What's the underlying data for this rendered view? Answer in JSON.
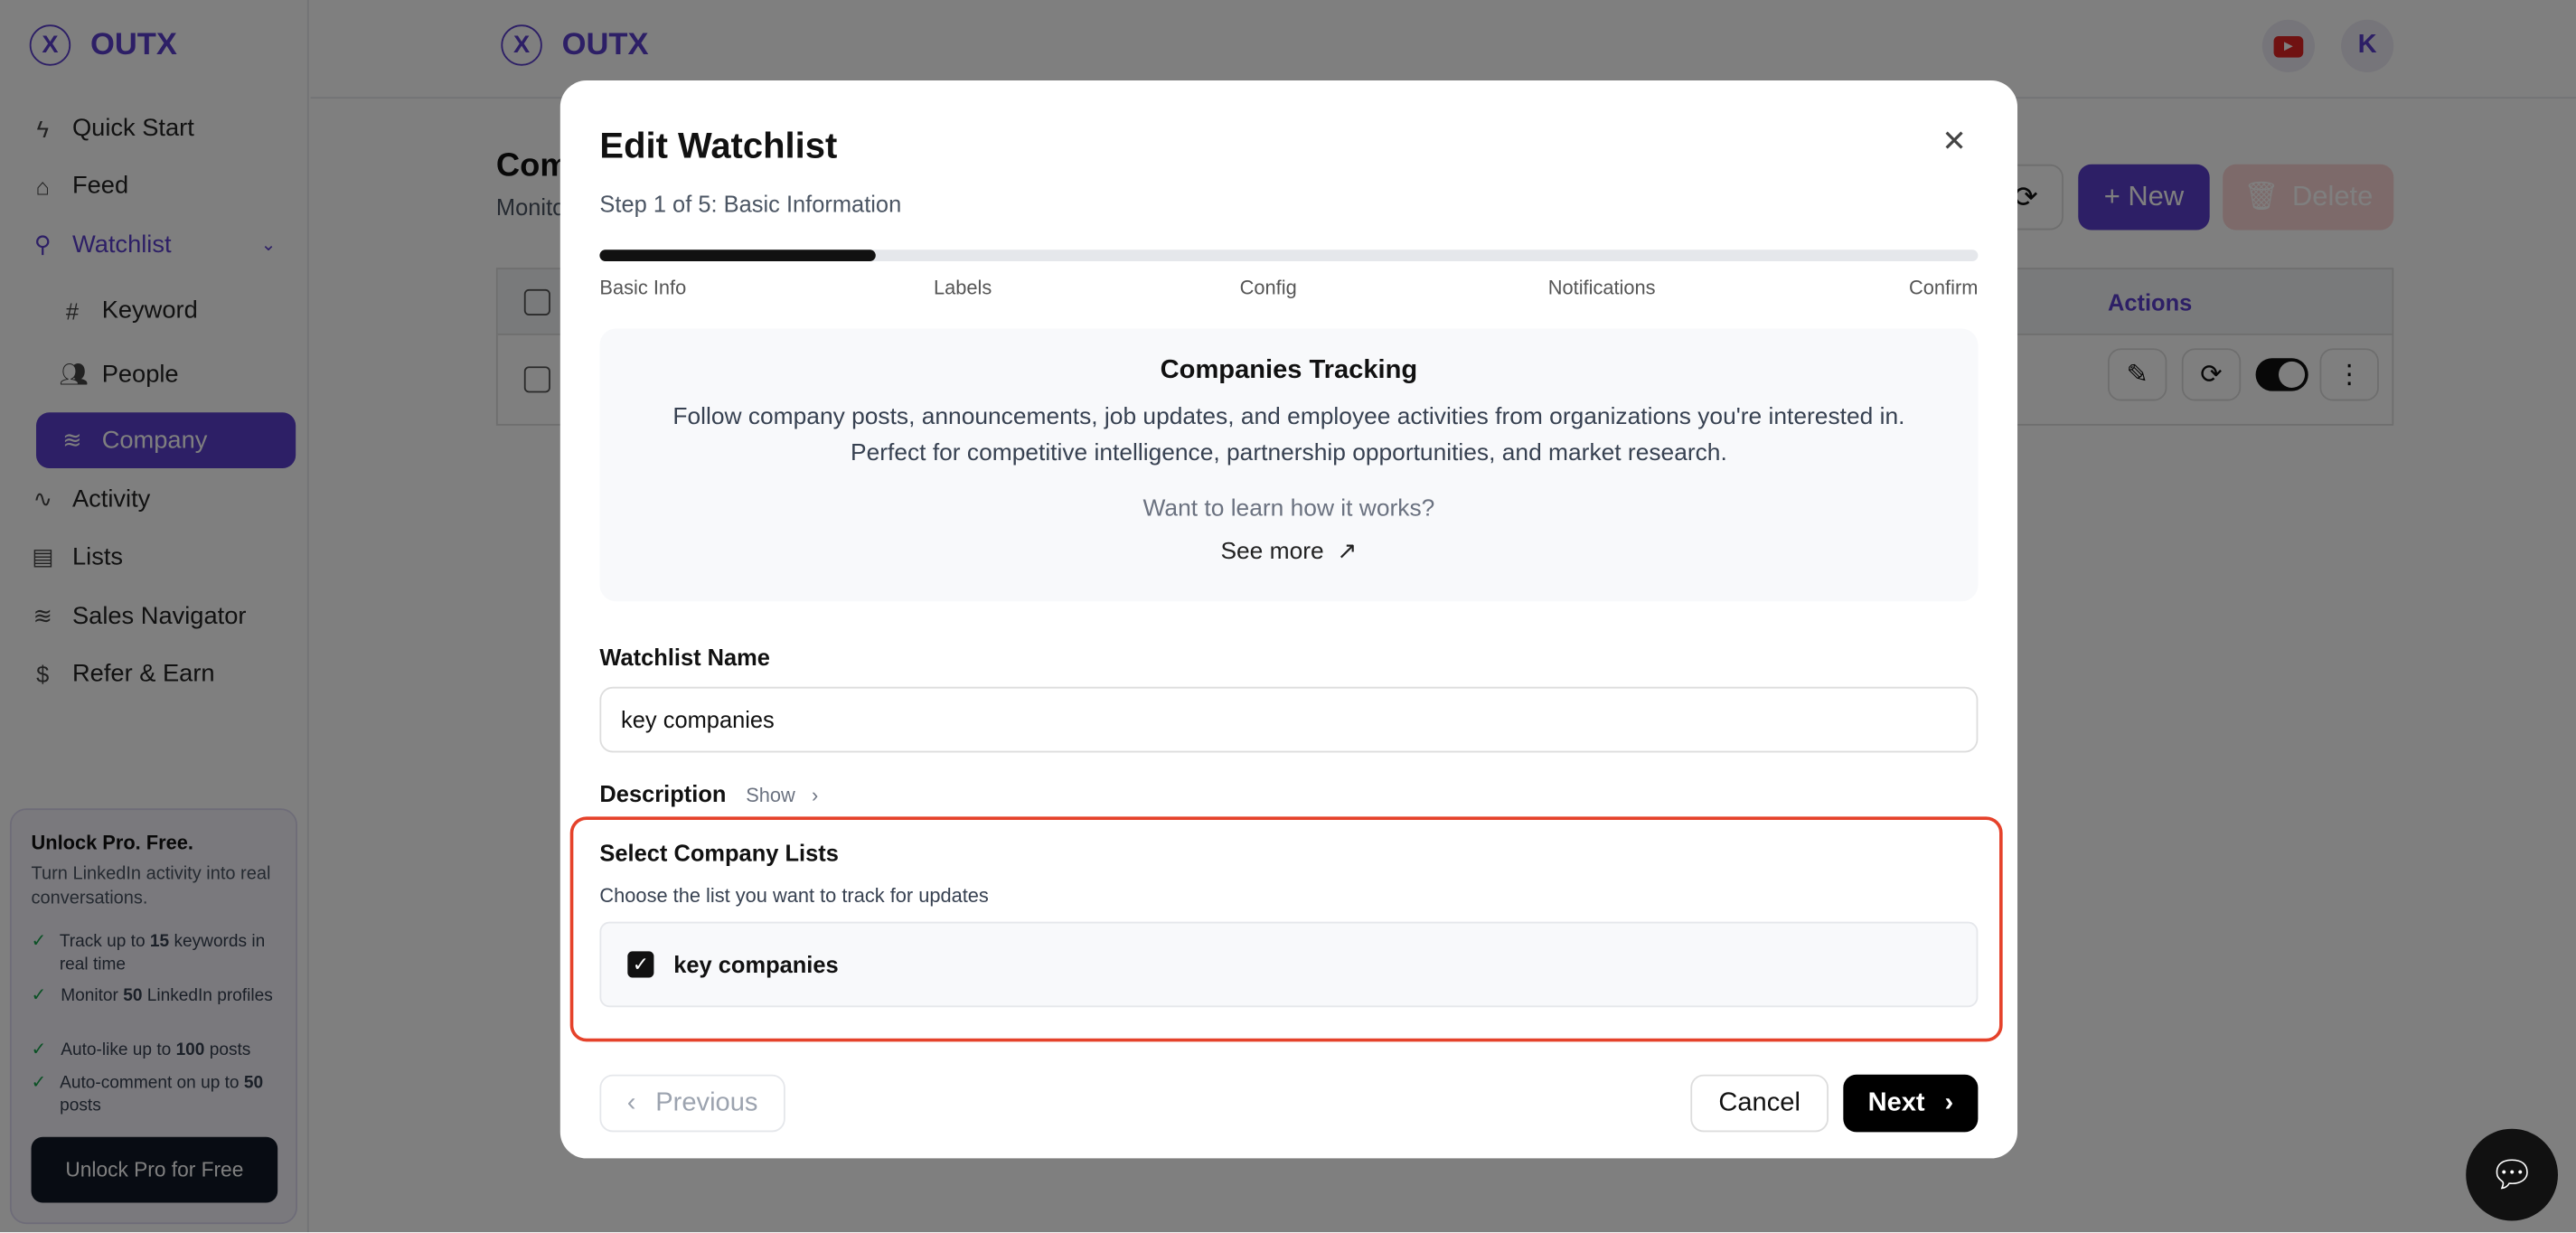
{
  "app": {
    "name": "OUTX",
    "logo_letter": "X",
    "brand_color": "#5b3fcc"
  },
  "sidebar": {
    "items": [
      {
        "label": "Quick Start",
        "icon": "lightning-icon"
      },
      {
        "label": "Feed",
        "icon": "home-icon"
      },
      {
        "label": "Watchlist",
        "icon": "search-icon"
      },
      {
        "label": "Keyword",
        "icon": "hash-icon"
      },
      {
        "label": "People",
        "icon": "users-icon"
      },
      {
        "label": "Company",
        "icon": "database-icon"
      },
      {
        "label": "Activity",
        "icon": "activity-icon"
      },
      {
        "label": "Lists",
        "icon": "document-icon"
      },
      {
        "label": "Sales Navigator",
        "icon": "database-icon"
      },
      {
        "label": "Refer & Earn",
        "icon": "dollar-icon"
      }
    ],
    "promo": {
      "title": "Unlock Pro. Free.",
      "subtitle": "Turn LinkedIn activity into real conversations.",
      "features": [
        {
          "pre": "Track up to ",
          "bold": "15",
          "post": " keywords in real time"
        },
        {
          "pre": "Monitor ",
          "bold": "50",
          "post": " LinkedIn profiles"
        },
        {
          "pre": "Auto-like up to ",
          "bold": "100",
          "post": " posts"
        },
        {
          "pre": "Auto-comment on up to ",
          "bold": "50",
          "post": " posts"
        }
      ],
      "button": "Unlock Pro for Free"
    }
  },
  "header": {
    "avatar_letter": "K"
  },
  "page": {
    "title": "Com",
    "subtitle": "Monito",
    "new_button": "+ New",
    "delete_button": "Delete",
    "actions_header": "Actions"
  },
  "modal": {
    "title": "Edit Watchlist",
    "step_text": "Step 1 of 5: Basic Information",
    "progress_percent": 20,
    "steps": [
      "Basic Info",
      "Labels",
      "Config",
      "Notifications",
      "Confirm"
    ],
    "info": {
      "title": "Companies Tracking",
      "line1": "Follow company posts, announcements, job updates, and employee activities from organizations you're interested in.",
      "line2": "Perfect for competitive intelligence, partnership opportunities, and market research.",
      "question": "Want to learn how it works?",
      "link": "See more"
    },
    "name_label": "Watchlist Name",
    "name_value": "key companies",
    "description_label": "Description",
    "description_toggle": "Show",
    "lists_title": "Select Company Lists",
    "lists_subtitle": "Choose the list you want to track for updates",
    "lists": [
      {
        "label": "key companies",
        "checked": true
      }
    ],
    "previous": "Previous",
    "cancel": "Cancel",
    "next": "Next"
  }
}
